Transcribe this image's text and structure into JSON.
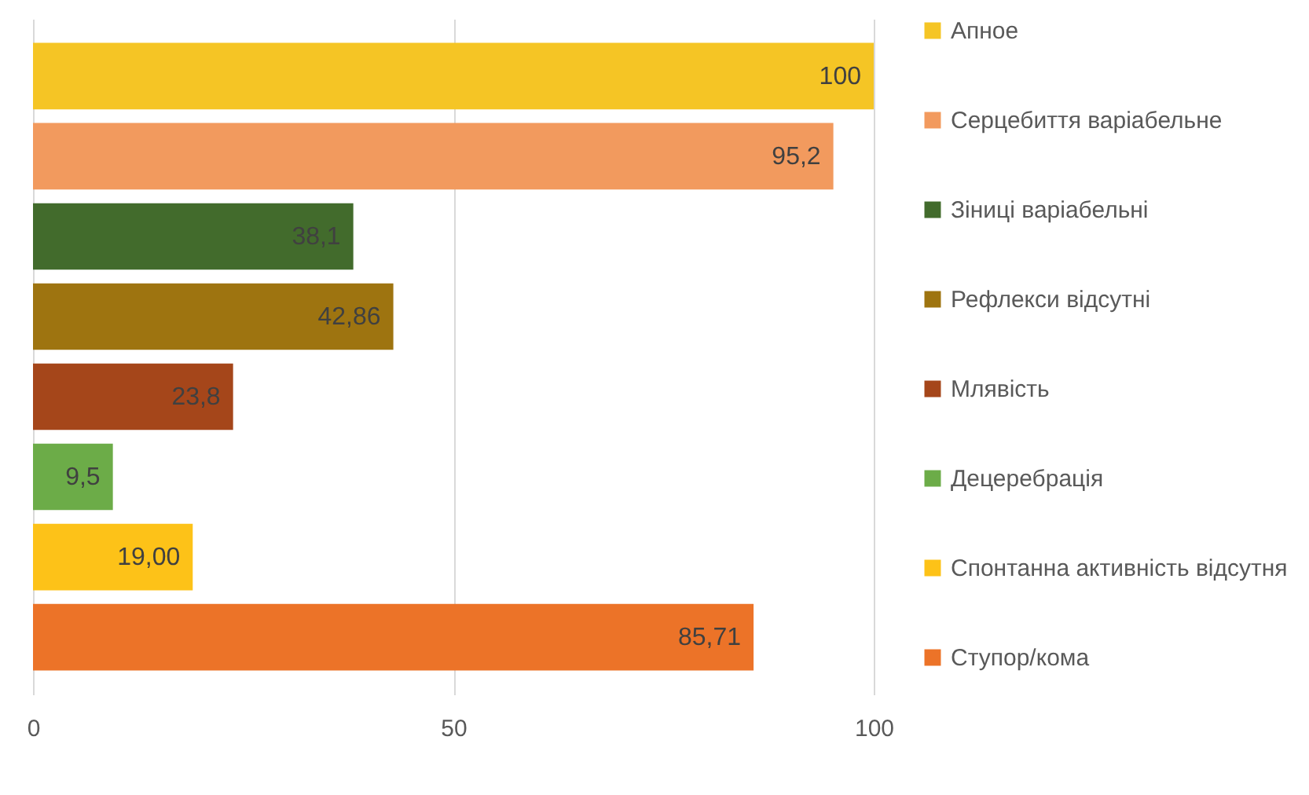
{
  "chart_data": {
    "type": "bar",
    "orientation": "horizontal",
    "categories": [
      null,
      null,
      null,
      null,
      null,
      null,
      null,
      null
    ],
    "series": [
      {
        "name": "Апное",
        "color": "#f5c525",
        "values": [
          100,
          null,
          null,
          null,
          null,
          null,
          null,
          null
        ],
        "value_labels": [
          "100",
          null,
          null,
          null,
          null,
          null,
          null,
          null
        ]
      },
      {
        "name": "Серцебиття варіабельне",
        "color": "#f29a5e",
        "values": [
          null,
          95.2,
          null,
          null,
          null,
          null,
          null,
          null
        ],
        "value_labels": [
          null,
          "95,2",
          null,
          null,
          null,
          null,
          null,
          null
        ]
      },
      {
        "name": "Зіниці варіабельні",
        "color": "#426b2c",
        "values": [
          null,
          null,
          38.1,
          null,
          null,
          null,
          null,
          null
        ],
        "value_labels": [
          null,
          null,
          "38,1",
          null,
          null,
          null,
          null,
          null
        ]
      },
      {
        "name": "Рефлекси відсутні",
        "color": "#9e7410",
        "values": [
          null,
          null,
          null,
          42.86,
          null,
          null,
          null,
          null
        ],
        "value_labels": [
          null,
          null,
          null,
          "42,86",
          null,
          null,
          null,
          null
        ]
      },
      {
        "name": "Млявість",
        "color": "#a5461a",
        "values": [
          null,
          null,
          null,
          null,
          23.8,
          null,
          null,
          null
        ],
        "value_labels": [
          null,
          null,
          null,
          null,
          "23,8",
          null,
          null,
          null
        ]
      },
      {
        "name": "Децеребрація",
        "color": "#6cac48",
        "values": [
          null,
          null,
          null,
          null,
          null,
          9.5,
          null,
          null
        ],
        "value_labels": [
          null,
          null,
          null,
          null,
          null,
          "9,5",
          null,
          null
        ]
      },
      {
        "name": "Спонтанна активність відсутня",
        "color": "#fdc218",
        "values": [
          null,
          null,
          null,
          null,
          null,
          null,
          19.0,
          null
        ],
        "value_labels": [
          null,
          null,
          null,
          null,
          null,
          null,
          "19,00",
          null
        ]
      },
      {
        "name": "Ступор/кома",
        "color": "#ec7328",
        "values": [
          null,
          null,
          null,
          null,
          null,
          null,
          null,
          85.71
        ],
        "value_labels": [
          null,
          null,
          null,
          null,
          null,
          null,
          null,
          "85,71"
        ]
      }
    ],
    "xlim": [
      0,
      100
    ],
    "xticks": [
      0,
      50,
      100
    ],
    "grid": "x",
    "legend": "right"
  }
}
